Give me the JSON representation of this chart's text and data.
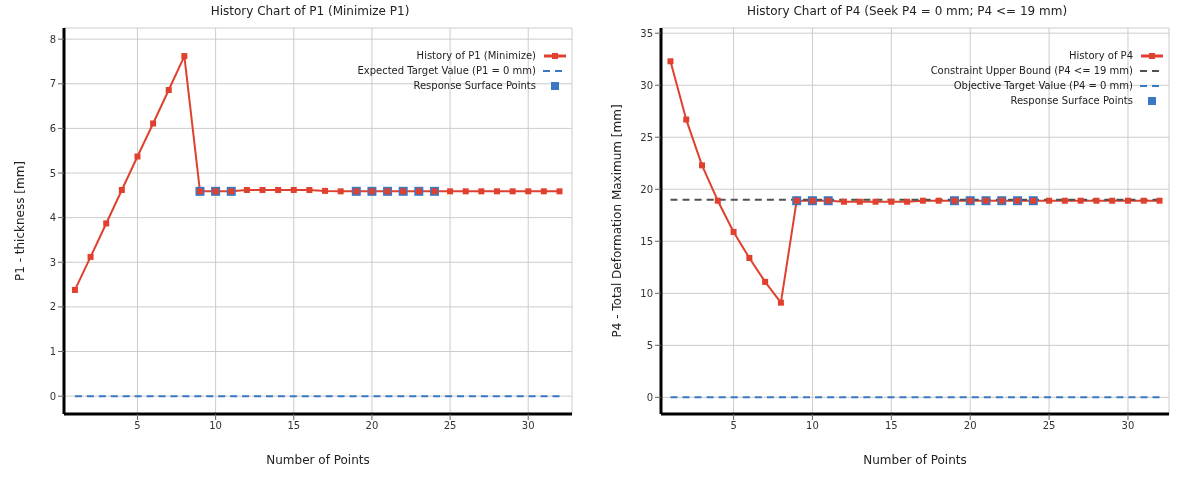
{
  "chart_data": [
    {
      "type": "line",
      "title": "History Chart of P1 (Minimize P1)",
      "xlabel": "Number of Points",
      "ylabel": "P1 - thickness  [mm]",
      "xlim": [
        0.3,
        32.8
      ],
      "xticks": [
        5,
        10,
        15,
        20,
        25,
        30
      ],
      "ylim": [
        -0.4,
        8.25
      ],
      "yticks": [
        0,
        1,
        2,
        3,
        4,
        5,
        6,
        7,
        8
      ],
      "grid": true,
      "legend": "top right",
      "x": [
        1,
        2,
        3,
        4,
        5,
        6,
        7,
        8,
        9,
        10,
        11,
        12,
        13,
        14,
        15,
        16,
        17,
        18,
        19,
        20,
        21,
        22,
        23,
        24,
        25,
        26,
        27,
        28,
        29,
        30,
        31,
        32
      ],
      "series": [
        {
          "name": "History of P1 (Minimize)",
          "color": "#e0412e",
          "marker": "square",
          "line_style": "solid",
          "values": [
            2.38,
            3.12,
            3.87,
            4.62,
            5.37,
            6.11,
            6.86,
            7.62,
            4.59,
            4.59,
            4.59,
            4.62,
            4.62,
            4.62,
            4.62,
            4.62,
            4.6,
            4.59,
            4.59,
            4.59,
            4.59,
            4.59,
            4.59,
            4.59,
            4.59,
            4.59,
            4.59,
            4.59,
            4.59,
            4.59,
            4.59,
            4.59
          ]
        },
        {
          "name": "Expected Target Value (P1 = 0 mm)",
          "color": "#3b78c4",
          "marker": "none",
          "line_style": "dashed",
          "x": [
            1,
            32
          ],
          "values": [
            0,
            0
          ]
        },
        {
          "name": "Response Surface Points",
          "type": "scatter",
          "color": "#3b78c4",
          "marker": "square",
          "x": [
            9,
            10,
            11,
            19,
            20,
            21,
            22,
            23,
            24
          ],
          "values": [
            4.59,
            4.59,
            4.59,
            4.59,
            4.59,
            4.59,
            4.59,
            4.59,
            4.59
          ]
        }
      ]
    },
    {
      "type": "line",
      "title": "History Chart of P4 (Seek P4 = 0 mm; P4 <= 19 mm)",
      "xlabel": "Number of Points",
      "ylabel": "P4 - Total Deformation Maximum  [mm]",
      "xlim": [
        0.4,
        32.6
      ],
      "xticks": [
        5,
        10,
        15,
        20,
        25,
        30
      ],
      "ylim": [
        -1.6,
        35.5
      ],
      "yticks": [
        0,
        5,
        10,
        15,
        20,
        25,
        30,
        35
      ],
      "grid": true,
      "legend": "top right",
      "x": [
        1,
        2,
        3,
        4,
        5,
        6,
        7,
        8,
        9,
        10,
        11,
        12,
        13,
        14,
        15,
        16,
        17,
        18,
        19,
        20,
        21,
        22,
        23,
        24,
        25,
        26,
        27,
        28,
        29,
        30,
        31,
        32
      ],
      "series": [
        {
          "name": "History of P4",
          "color": "#e0412e",
          "marker": "square",
          "line_style": "solid",
          "values": [
            32.3,
            26.7,
            22.3,
            18.9,
            15.9,
            13.4,
            11.1,
            9.1,
            18.9,
            18.9,
            18.9,
            18.8,
            18.8,
            18.8,
            18.8,
            18.8,
            18.9,
            18.9,
            18.9,
            18.9,
            18.9,
            18.9,
            18.9,
            18.9,
            18.9,
            18.9,
            18.9,
            18.9,
            18.9,
            18.9,
            18.9,
            18.9
          ]
        },
        {
          "name": "Constraint Upper Bound (P4 <= 19 mm)",
          "color": "#505050",
          "marker": "none",
          "line_style": "dashed",
          "x": [
            1,
            32
          ],
          "values": [
            19,
            19
          ]
        },
        {
          "name": "Objective Target Value (P4 = 0 mm)",
          "color": "#3b78c4",
          "marker": "none",
          "line_style": "dashed",
          "x": [
            1,
            32
          ],
          "values": [
            0,
            0
          ]
        },
        {
          "name": "Response Surface Points",
          "type": "scatter",
          "color": "#3b78c4",
          "marker": "square",
          "x": [
            9,
            10,
            11,
            19,
            20,
            21,
            22,
            23,
            24
          ],
          "values": [
            18.9,
            18.9,
            18.9,
            18.9,
            18.9,
            18.9,
            18.9,
            18.9,
            18.9
          ]
        }
      ]
    }
  ]
}
